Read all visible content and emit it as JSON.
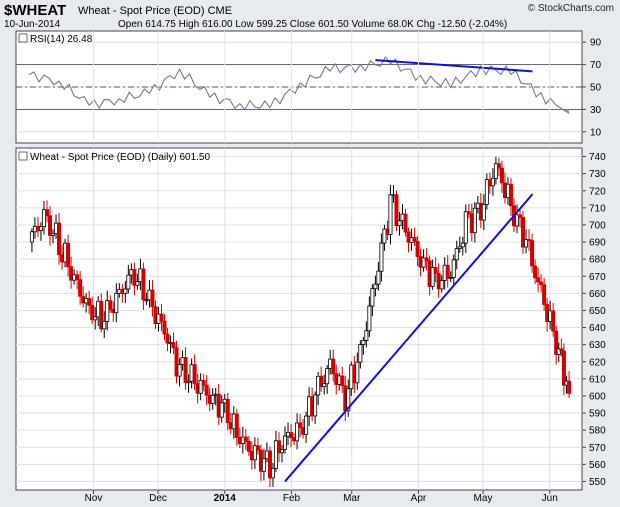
{
  "header": {
    "symbol": "$WHEAT",
    "description": "Wheat - Spot Price (EOD) CME",
    "date": "10-Jun-2014",
    "ohlc": "Open 614.75  High 616.00  Low 599.25  Close 601.50  Volume 68.0K  Chg -12.50 (-2.04%)",
    "watermark": "© StockCharts.com"
  },
  "colors": {
    "up": "#000000",
    "down": "#d30000",
    "trendline": "#1010e0",
    "rsi": "#6c7d8c",
    "rsi_fill": "#7f9ca8"
  },
  "chart_data": [
    {
      "type": "line",
      "title": "RSI(14) 26.48",
      "indicator": "RSI(14)",
      "last_value": 26.48,
      "ylim": [
        0,
        100
      ],
      "yticks": [
        10,
        30,
        50,
        70,
        90
      ],
      "reference_lines": [
        70,
        50,
        30
      ],
      "x": [
        "2013-10-02",
        "2013-10-16",
        "2013-10-30",
        "2013-11-13",
        "2013-11-27",
        "2013-12-11",
        "2013-12-25",
        "2014-01-08",
        "2014-01-22",
        "2014-02-05",
        "2014-02-19",
        "2014-03-05",
        "2014-03-19",
        "2014-04-02",
        "2014-04-16",
        "2014-04-30",
        "2014-05-14",
        "2014-05-28",
        "2014-06-10"
      ],
      "values": [
        61,
        55,
        34,
        39,
        45,
        65,
        42,
        34,
        33,
        52,
        66,
        68,
        73,
        58,
        52,
        66,
        64,
        42,
        26.48
      ],
      "annotations": [
        {
          "type": "trendline",
          "from": [
            "2014-03-12",
            74
          ],
          "to": [
            "2014-05-24",
            64
          ]
        }
      ]
    },
    {
      "type": "candlestick",
      "title": "Wheat - Spot Price (EOD) (Daily) 601.50",
      "series_name": "Wheat - Spot Price (EOD)",
      "last_value": 601.5,
      "ylim": [
        545,
        745
      ],
      "yticks": [
        550,
        560,
        570,
        580,
        590,
        600,
        610,
        620,
        630,
        640,
        650,
        660,
        670,
        680,
        690,
        700,
        710,
        720,
        730,
        740
      ],
      "xticks": [
        "Nov",
        "Dec",
        "2014",
        "Feb",
        "Mar",
        "Apr",
        "May",
        "Jun"
      ],
      "x": [
        "2013-10-02",
        "2013-10-09",
        "2013-10-16",
        "2013-10-23",
        "2013-10-30",
        "2013-11-06",
        "2013-11-13",
        "2013-11-20",
        "2013-11-27",
        "2013-12-04",
        "2013-12-11",
        "2013-12-18",
        "2013-12-25",
        "2014-01-01",
        "2014-01-08",
        "2014-01-15",
        "2014-01-22",
        "2014-01-29",
        "2014-02-05",
        "2014-02-12",
        "2014-02-19",
        "2014-02-26",
        "2014-03-05",
        "2014-03-12",
        "2014-03-19",
        "2014-03-26",
        "2014-04-02",
        "2014-04-09",
        "2014-04-16",
        "2014-04-23",
        "2014-04-30",
        "2014-05-07",
        "2014-05-14",
        "2014-05-21",
        "2014-05-28",
        "2014-06-04",
        "2014-06-10"
      ],
      "close": [
        690,
        705,
        690,
        668,
        650,
        645,
        660,
        673,
        655,
        638,
        615,
        610,
        600,
        592,
        575,
        565,
        560,
        575,
        580,
        600,
        618,
        600,
        625,
        668,
        712,
        698,
        680,
        668,
        672,
        700,
        710,
        735,
        712,
        690,
        660,
        632,
        601.5
      ],
      "annotations": [
        {
          "type": "trendline",
          "from": [
            "2014-01-29",
            550
          ],
          "to": [
            "2014-05-24",
            718
          ]
        }
      ]
    }
  ]
}
